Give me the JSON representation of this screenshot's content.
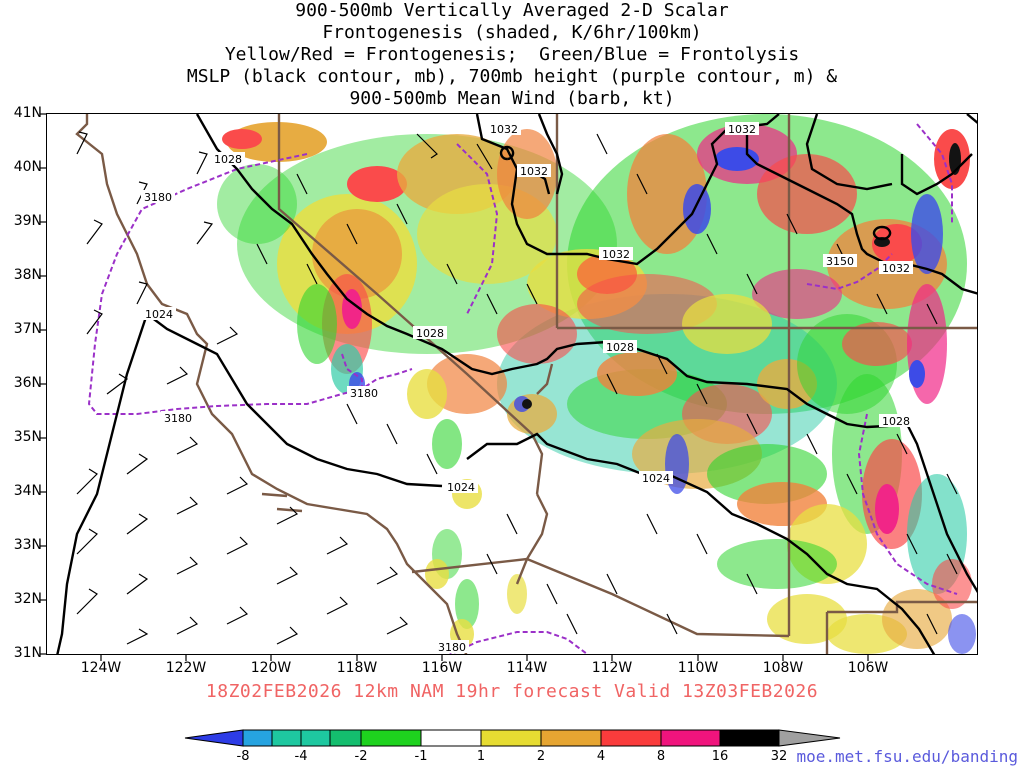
{
  "title": {
    "line1": "900-500mb Vertically Averaged 2-D Scalar",
    "line2": "Frontogenesis (shaded, K/6hr/100km)",
    "line3": "Yellow/Red = Frontogenesis;  Green/Blue = Frontolysis",
    "line4": "MSLP (black contour, mb), 700mb height (purple contour, m) &",
    "line5": "900-500mb Mean Wind (barb, kt)"
  },
  "latitudes": [
    "41N",
    "40N",
    "39N",
    "38N",
    "37N",
    "36N",
    "35N",
    "34N",
    "33N",
    "32N",
    "31N"
  ],
  "longitudes": [
    "124W",
    "122W",
    "120W",
    "118W",
    "116W",
    "114W",
    "112W",
    "110W",
    "108W",
    "106W"
  ],
  "run_info": "18Z02FEB2026 12km NAM 19hr forecast Valid 13Z03FEB2026",
  "url": "moe.met.fsu.edu/banding",
  "mslp_labels": [
    {
      "text": "1028"
    },
    {
      "text": "1032"
    },
    {
      "text": "1032"
    },
    {
      "text": "1032"
    },
    {
      "text": "1032"
    },
    {
      "text": "1032"
    },
    {
      "text": "1028"
    },
    {
      "text": "1028"
    },
    {
      "text": "1028"
    },
    {
      "text": "1024"
    },
    {
      "text": "1024"
    },
    {
      "text": "1024"
    }
  ],
  "height_labels": [
    {
      "text": "3180"
    },
    {
      "text": "3180"
    },
    {
      "text": "3180"
    },
    {
      "text": "3150"
    },
    {
      "text": "3180"
    }
  ],
  "colorbar": {
    "labels": [
      "-8",
      "-4",
      "-2",
      "-1",
      "1",
      "2",
      "4",
      "8",
      "16",
      "32"
    ],
    "colors": [
      "#2d3ce6",
      "#26a3e0",
      "#1ec8a0",
      "#14be6e",
      "#1ed21e",
      "#ffffff",
      "#e6dc32",
      "#e6a532",
      "#f0782d",
      "#fa3c3c",
      "#f0147d",
      "#000000",
      "#a0a0a0"
    ]
  },
  "colors": {
    "mslp": "#000000",
    "height": "#9b30c8",
    "borders": "#7a5a46"
  }
}
